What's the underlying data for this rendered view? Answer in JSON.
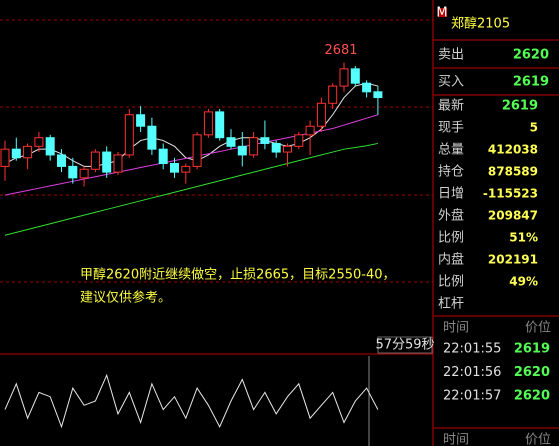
{
  "chart_data": [
    {
      "type": "candlestick",
      "high_label": 2681,
      "annotation": [
        "甲醇2620附近继续做空，止损2665，目标2550-40，",
        "建议仅供参考。"
      ],
      "timer": "57分59秒",
      "open": [
        2500,
        2530,
        2515,
        2535,
        2550,
        2520,
        2500,
        2480,
        2495,
        2525,
        2490,
        2520,
        2590,
        2570,
        2530,
        2505,
        2490,
        2500,
        2555,
        2595,
        2550,
        2535,
        2520,
        2550,
        2540,
        2525,
        2535,
        2555,
        2570,
        2610,
        2640,
        2670,
        2645,
        2630
      ],
      "high": [
        2545,
        2550,
        2540,
        2560,
        2555,
        2530,
        2515,
        2500,
        2530,
        2535,
        2525,
        2600,
        2605,
        2585,
        2540,
        2515,
        2505,
        2560,
        2600,
        2600,
        2565,
        2560,
        2560,
        2580,
        2545,
        2540,
        2560,
        2580,
        2620,
        2645,
        2681,
        2675,
        2650,
        2640
      ],
      "low": [
        2475,
        2510,
        2495,
        2525,
        2510,
        2490,
        2470,
        2465,
        2490,
        2480,
        2485,
        2515,
        2560,
        2520,
        2495,
        2480,
        2470,
        2495,
        2550,
        2545,
        2530,
        2500,
        2515,
        2530,
        2515,
        2500,
        2530,
        2520,
        2560,
        2600,
        2630,
        2640,
        2620,
        2590
      ],
      "close": [
        2530,
        2515,
        2535,
        2550,
        2520,
        2500,
        2480,
        2495,
        2525,
        2490,
        2520,
        2590,
        2570,
        2530,
        2505,
        2490,
        2500,
        2555,
        2595,
        2550,
        2535,
        2520,
        2550,
        2540,
        2525,
        2535,
        2555,
        2570,
        2610,
        2640,
        2670,
        2645,
        2630,
        2620
      ],
      "up_color": "#ff3232",
      "down_color": "#54ffff",
      "ylim": [
        2180,
        2790
      ],
      "ma_lines": [
        {
          "color": "#e8e8e8",
          "values": [
            2505,
            2515,
            2520,
            2530,
            2530,
            2522,
            2510,
            2500,
            2500,
            2505,
            2510,
            2530,
            2545,
            2550,
            2545,
            2535,
            2515,
            2510,
            2520,
            2535,
            2545,
            2550,
            2550,
            2545,
            2540,
            2535,
            2540,
            2550,
            2565,
            2590,
            2620,
            2640,
            2645,
            2640
          ]
        },
        {
          "color": "#e040e0",
          "values": [
            2450,
            2454,
            2458,
            2462,
            2466,
            2470,
            2474,
            2478,
            2482,
            2486,
            2490,
            2494,
            2498,
            2502,
            2506,
            2510,
            2514,
            2518,
            2522,
            2526,
            2530,
            2534,
            2538,
            2542,
            2546,
            2550,
            2554,
            2558,
            2562,
            2566,
            2572,
            2578,
            2584,
            2590
          ]
        },
        {
          "color": "#30e030",
          "values": [
            2380,
            2385,
            2390,
            2395,
            2400,
            2405,
            2410,
            2415,
            2420,
            2425,
            2430,
            2435,
            2440,
            2445,
            2450,
            2455,
            2460,
            2465,
            2470,
            2475,
            2480,
            2485,
            2490,
            2495,
            2500,
            2505,
            2510,
            2515,
            2520,
            2525,
            2530,
            2533,
            2536,
            2540
          ]
        }
      ]
    },
    {
      "type": "line",
      "color": "#e8e8e8",
      "ylim": [
        0,
        100
      ],
      "values": [
        40,
        70,
        30,
        60,
        55,
        20,
        65,
        45,
        50,
        80,
        35,
        60,
        25,
        70,
        40,
        55,
        30,
        65,
        45,
        20,
        50,
        75,
        40,
        60,
        35,
        55,
        70,
        30,
        45,
        60,
        25,
        50,
        65,
        40
      ]
    }
  ],
  "quote_panel": {
    "title": "郑醇2105",
    "icon": "M",
    "sell_label": "卖出",
    "sell": "2620",
    "buy_label": "买入",
    "buy": "2619",
    "rows": [
      [
        "最新",
        "2619"
      ],
      [
        "现手",
        "5"
      ],
      [
        "总量",
        "412038"
      ],
      [
        "持仓",
        "878589"
      ],
      [
        "日增",
        "-115523"
      ],
      [
        "外盘",
        "209847"
      ],
      [
        "比例",
        "51%"
      ],
      [
        "内盘",
        "202191"
      ],
      [
        "比例",
        "49%"
      ],
      [
        "杠杆"
      ]
    ],
    "ticks_header": [
      "时间",
      "价位"
    ],
    "ticks": [
      [
        "22:01:55",
        "2619"
      ],
      [
        "22:01:56",
        "2620"
      ],
      [
        "22:01:57",
        "2620"
      ]
    ],
    "footer_header": [
      "时间",
      "价位"
    ]
  }
}
